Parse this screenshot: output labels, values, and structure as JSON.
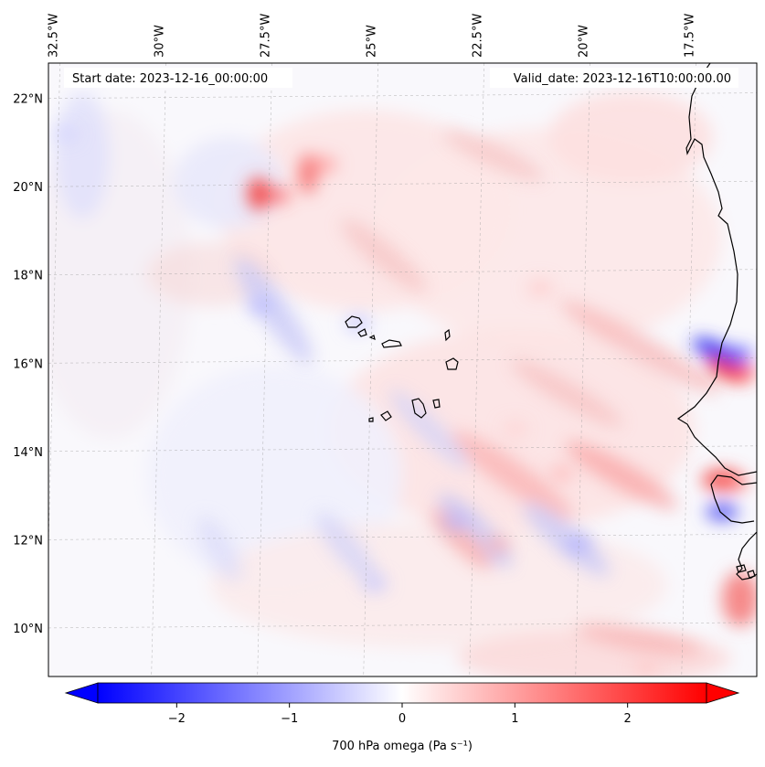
{
  "map": {
    "start_date": "Start date: 2023-12-16_00:00:00",
    "valid_date": "Valid_date: 2023-12-16T10:00:00.00",
    "lon_ticks": [
      {
        "value": -32.5,
        "label": "32.5°W"
      },
      {
        "value": -30.0,
        "label": "30°W"
      },
      {
        "value": -27.5,
        "label": "27.5°W"
      },
      {
        "value": -25.0,
        "label": "25°W"
      },
      {
        "value": -22.5,
        "label": "22.5°W"
      },
      {
        "value": -20.0,
        "label": "20°W"
      },
      {
        "value": -17.5,
        "label": "17.5°W"
      }
    ],
    "lat_ticks": [
      {
        "value": 22,
        "label": "22°N"
      },
      {
        "value": 20,
        "label": "20°N"
      },
      {
        "value": 18,
        "label": "18°N"
      },
      {
        "value": 16,
        "label": "16°N"
      },
      {
        "value": 14,
        "label": "14°N"
      },
      {
        "value": 12,
        "label": "12°N"
      },
      {
        "value": 10,
        "label": "10°N"
      }
    ],
    "lon_range": [
      -32.6,
      -15.9
    ],
    "lat_range": [
      8.9,
      22.8
    ]
  },
  "colorbar": {
    "label": "700 hPa omega (Pa s⁻¹)",
    "range": [
      -2.7,
      2.7
    ],
    "ticks": [
      {
        "value": -2,
        "label": "−2"
      },
      {
        "value": -1,
        "label": "−1"
      },
      {
        "value": 0,
        "label": "0"
      },
      {
        "value": 1,
        "label": "1"
      },
      {
        "value": 2,
        "label": "2"
      }
    ],
    "low_color": "#0000ff",
    "mid_color": "#ffffff",
    "high_color": "#ff0000"
  },
  "features": [
    {
      "name": "ascent-patch",
      "lon": -27.2,
      "lat": 19.8,
      "omega": 1.8
    },
    {
      "name": "ascent-patch",
      "lon": -26.1,
      "lat": 20.5,
      "omega": 1.2
    },
    {
      "name": "descent-patch",
      "lon": -16.3,
      "lat": 16.2,
      "omega": -1.9
    },
    {
      "name": "ascent-patch",
      "lon": -16.2,
      "lat": 15.8,
      "omega": 2.0
    },
    {
      "name": "ascent-patch",
      "lon": -16.4,
      "lat": 13.3,
      "omega": 1.6
    },
    {
      "name": "descent-patch",
      "lon": -20.1,
      "lat": 11.9,
      "omega": -0.9
    },
    {
      "name": "descent-patch",
      "lon": -23.0,
      "lat": 12.4,
      "omega": -0.8
    },
    {
      "name": "ascent-patch",
      "lon": -22.0,
      "lat": 11.9,
      "omega": 0.9
    },
    {
      "name": "ascent-patch",
      "lon": -20.5,
      "lat": 13.5,
      "omega": 0.8
    },
    {
      "name": "descent-patch",
      "lon": -27.6,
      "lat": 17.3,
      "omega": -0.8
    },
    {
      "name": "descent-patch",
      "lon": -25.3,
      "lat": 16.9,
      "omega": -0.7
    },
    {
      "name": "ascent-patch",
      "lon": -21.0,
      "lat": 17.7,
      "omega": 0.6
    },
    {
      "name": "descent-patch",
      "lon": -32.2,
      "lat": 21.2,
      "omega": -0.5
    },
    {
      "name": "ascent-patch",
      "lon": -18.5,
      "lat": 9.1,
      "omega": 0.6
    },
    {
      "name": "descent-patch",
      "lon": -24.9,
      "lat": 11.0,
      "omega": -0.6
    },
    {
      "name": "ascent-patch",
      "lon": -21.6,
      "lat": 14.5,
      "omega": 0.5
    }
  ]
}
